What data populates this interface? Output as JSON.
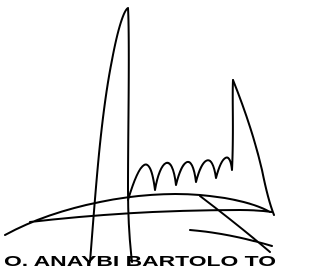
{
  "signature": {
    "name": "O. ANAYBI BARTOLO TO"
  }
}
